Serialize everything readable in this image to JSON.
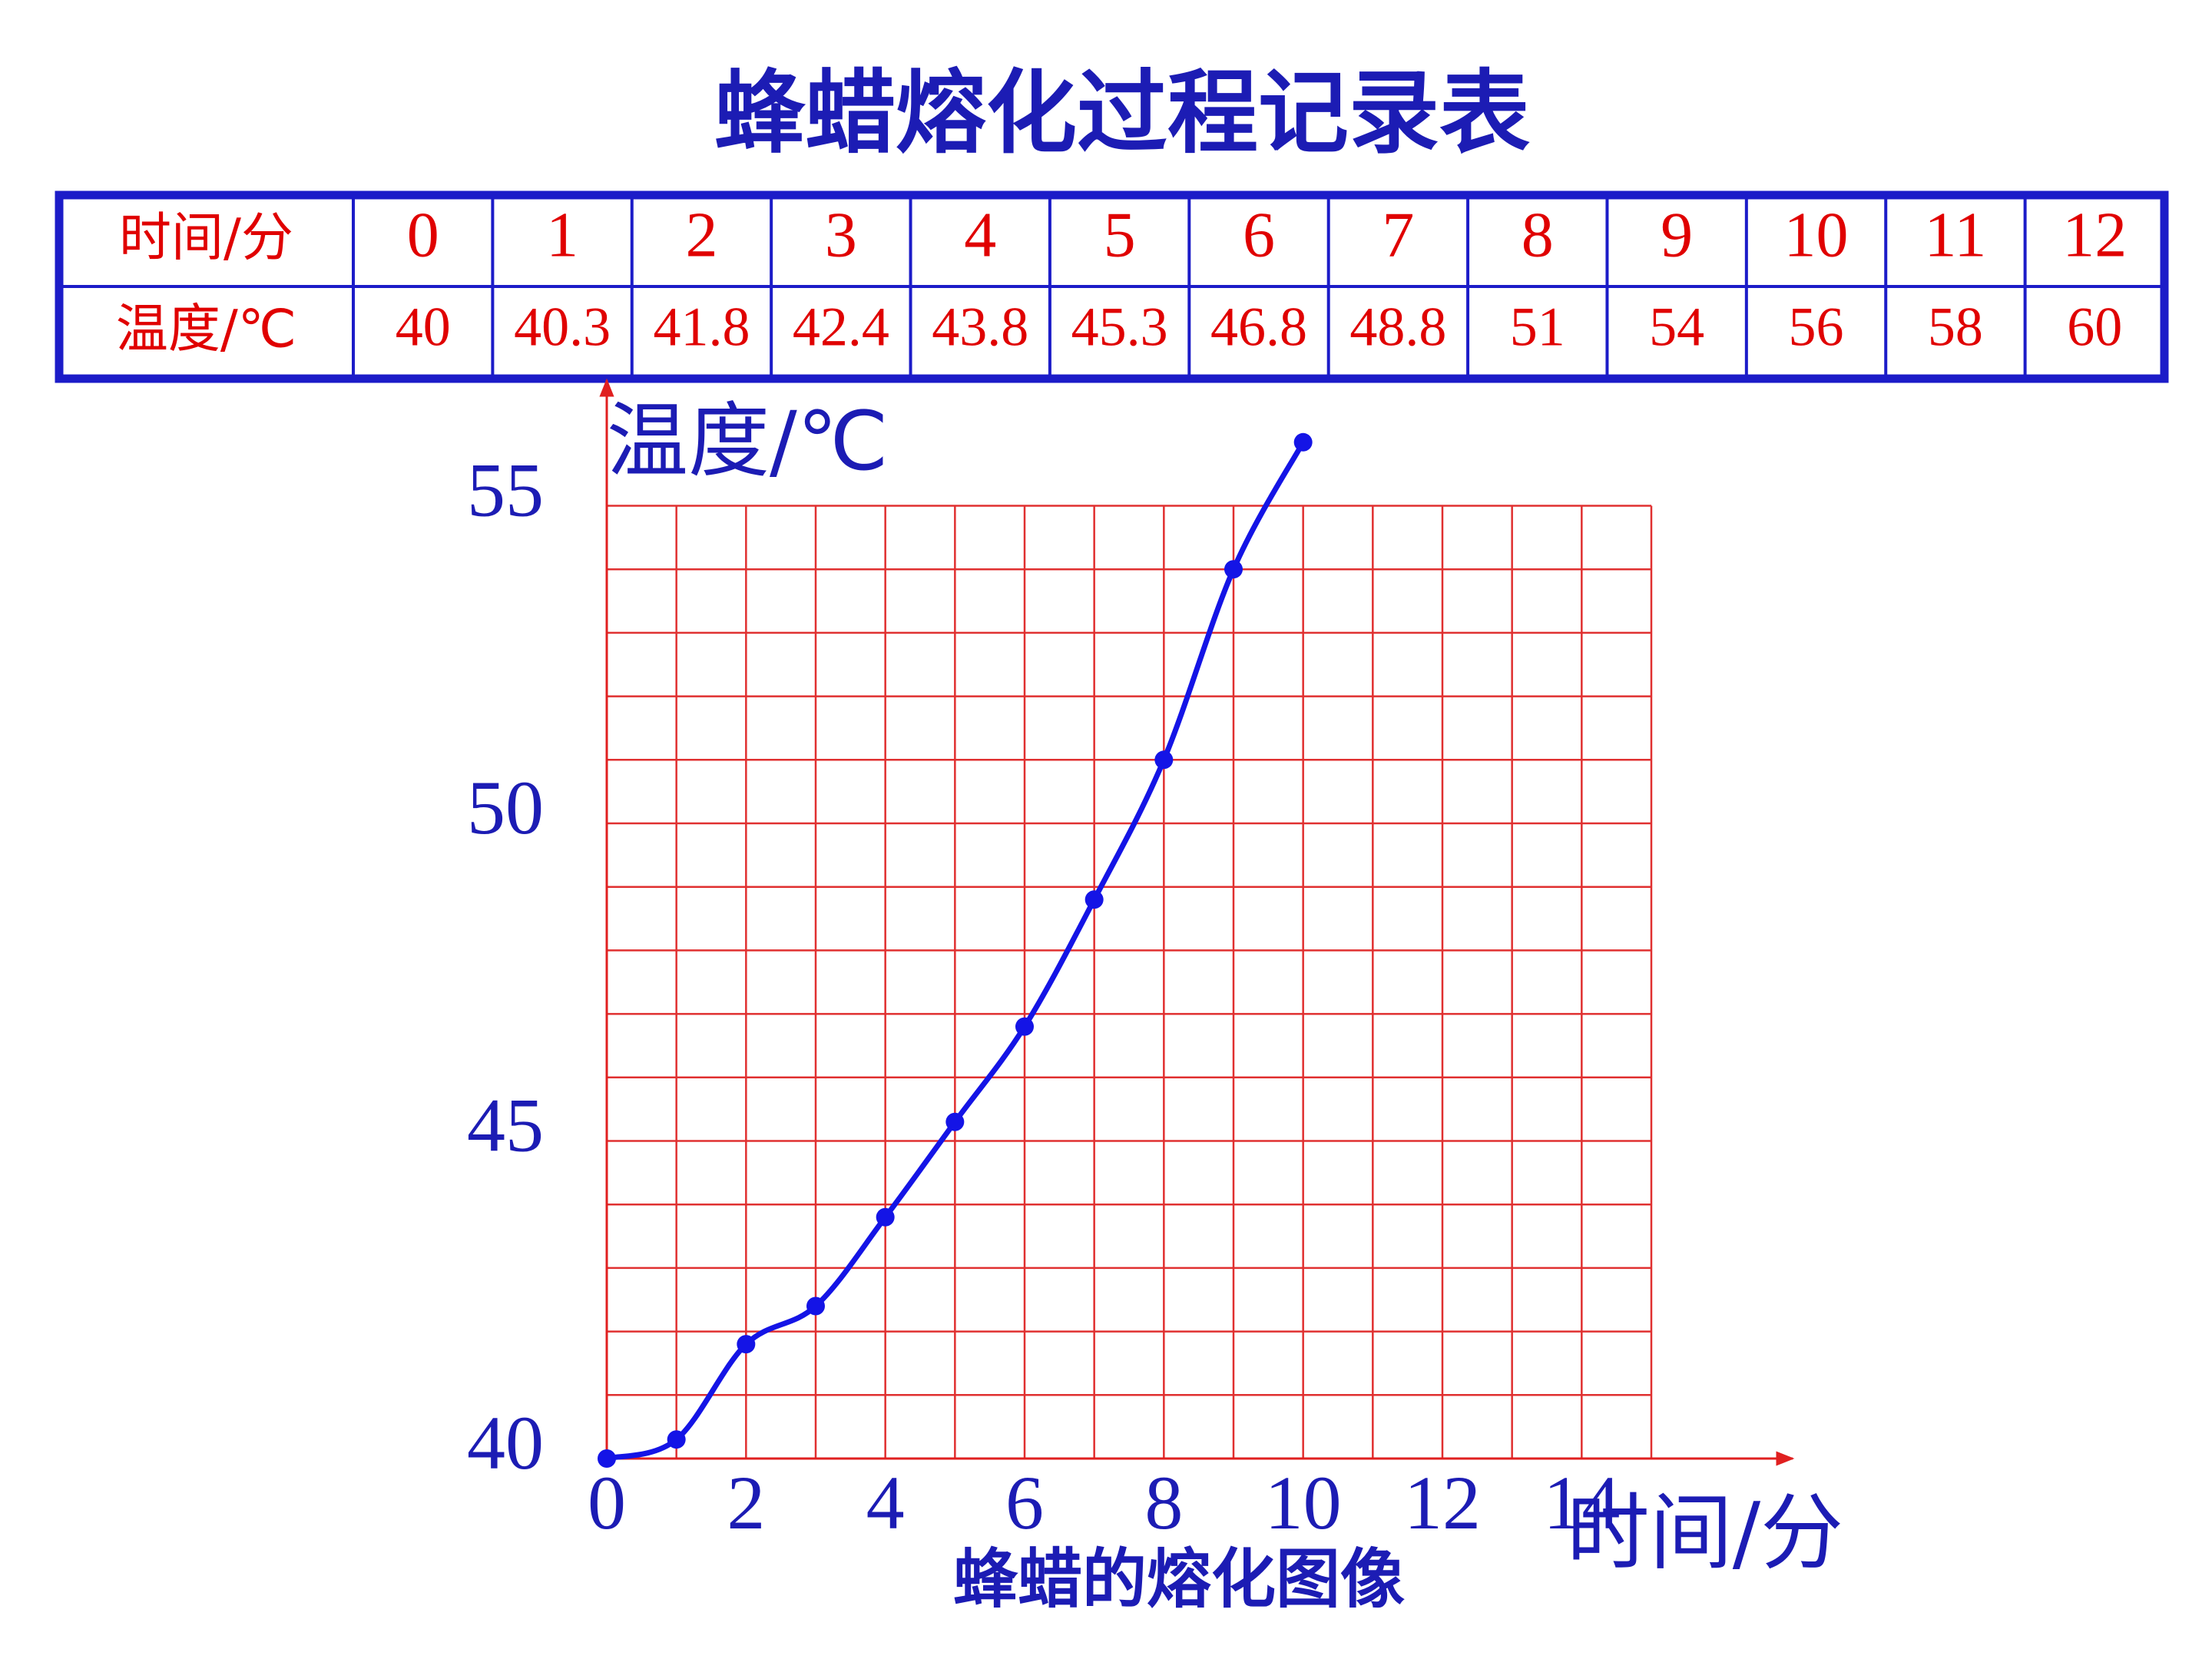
{
  "title": "蜂蜡熔化过程记录表",
  "table": {
    "rows": [
      [
        "时间/分",
        0,
        1,
        2,
        3,
        4,
        5,
        6,
        7,
        8,
        9,
        10,
        11,
        12
      ],
      [
        "温度/℃",
        40,
        40.3,
        41.8,
        42.4,
        43.8,
        45.3,
        46.8,
        48.8,
        51,
        54,
        56,
        58,
        60
      ]
    ]
  },
  "chart_data": {
    "type": "line",
    "caption": "蜂蜡的熔化图像",
    "x_label": "时间/分",
    "y_label": "温度/℃",
    "x": [
      0,
      1,
      2,
      3,
      4,
      5,
      6,
      7,
      8,
      9,
      10
    ],
    "series": [
      {
        "color": "#1414e6",
        "values": [
          40,
          40.3,
          41.8,
          42.4,
          43.8,
          45.3,
          46.8,
          48.8,
          51,
          54,
          56
        ]
      }
    ],
    "xlim": [
      0,
      15
    ],
    "ylim": [
      40,
      56.5
    ],
    "xticks": [
      0,
      2,
      4,
      6,
      8,
      10,
      12,
      14
    ],
    "yticks": [
      40,
      45,
      50,
      55
    ],
    "grid": true,
    "grid_xticks": [
      0,
      1,
      2,
      3,
      4,
      5,
      6,
      7,
      8,
      9,
      10,
      11,
      12,
      13,
      14,
      15
    ],
    "grid_yticks": [
      40,
      41,
      42,
      43,
      44,
      45,
      46,
      47,
      48,
      49,
      50,
      51,
      52,
      53,
      54,
      55
    ]
  }
}
